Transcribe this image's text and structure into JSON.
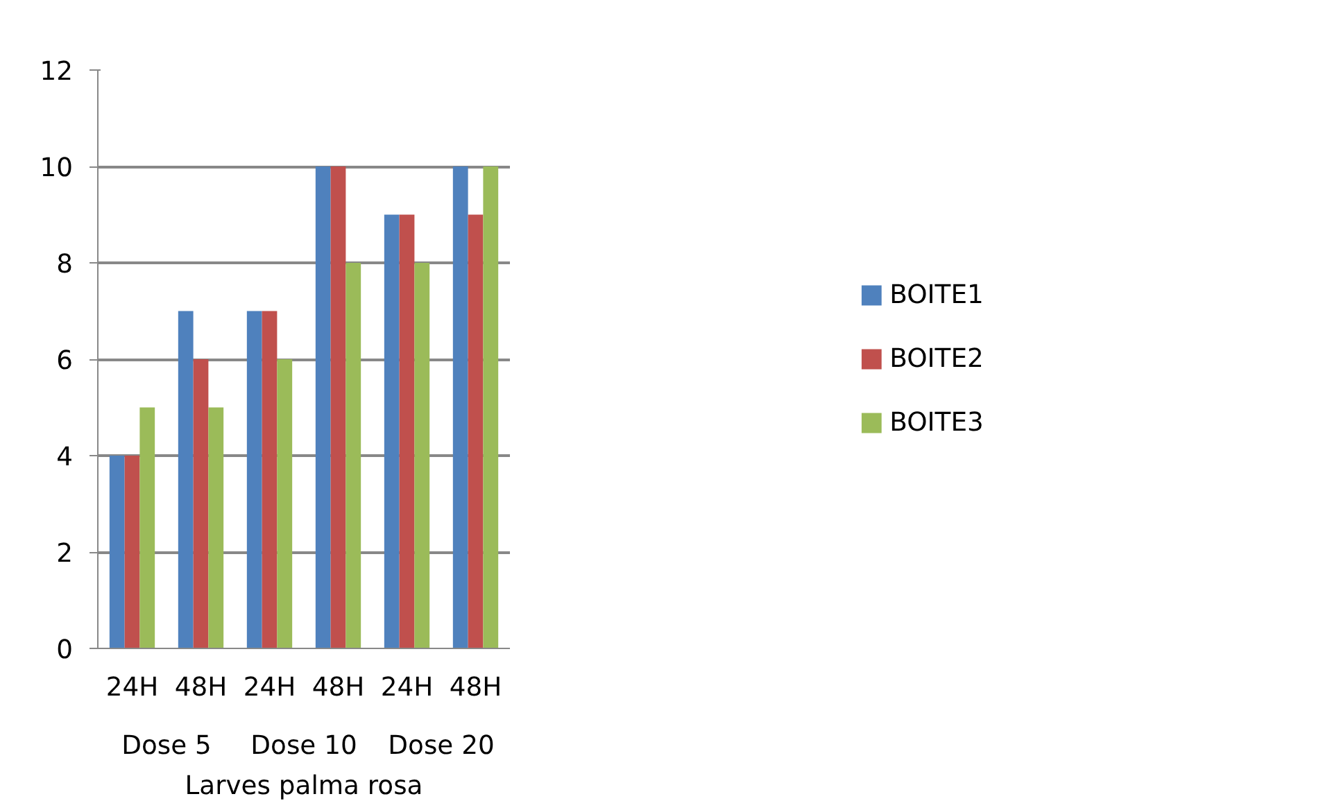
{
  "chart_data": {
    "type": "bar",
    "categories": [
      "24H",
      "48H",
      "24H",
      "48H",
      "24H",
      "48H"
    ],
    "series": [
      {
        "name": "BOITE1",
        "color": "#4f81bd",
        "values": [
          4,
          7,
          7,
          10,
          9,
          10
        ]
      },
      {
        "name": "BOITE2",
        "color": "#c0504d",
        "values": [
          4,
          6,
          7,
          10,
          9,
          9
        ]
      },
      {
        "name": "BOITE3",
        "color": "#9bbb59",
        "values": [
          5,
          5,
          6,
          8,
          8,
          10
        ]
      }
    ],
    "ylim": [
      0,
      12
    ],
    "yticks": [
      0,
      2,
      4,
      6,
      8,
      10,
      12
    ],
    "grid": "y",
    "legend": "right",
    "xlabel": "Larves palma rosa",
    "annotations": [
      "Dose 5",
      "Dose 10",
      "Dose 20"
    ]
  }
}
